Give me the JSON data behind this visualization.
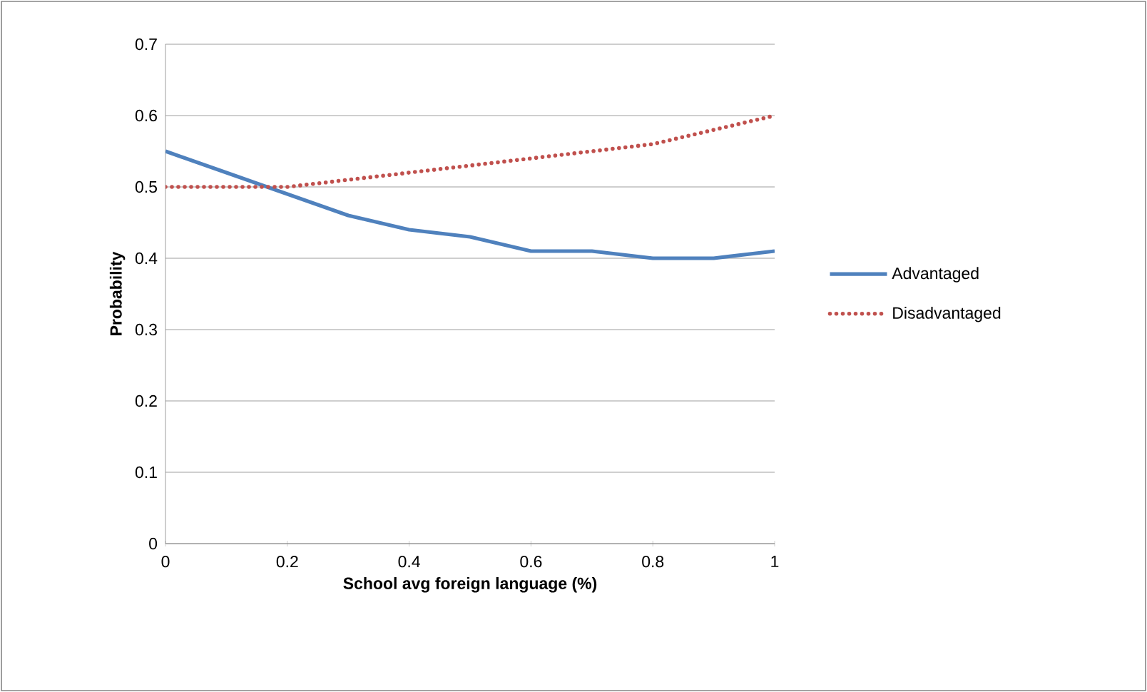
{
  "chart_data": {
    "type": "line",
    "xlabel": "School avg foreign language  (%)",
    "ylabel": "Probability",
    "x": [
      0,
      0.1,
      0.2,
      0.3,
      0.4,
      0.5,
      0.6,
      0.7,
      0.8,
      0.9,
      1
    ],
    "series": [
      {
        "name": "Advantaged",
        "color": "#4f81bd",
        "line_style": "solid",
        "values": [
          0.55,
          0.52,
          0.49,
          0.46,
          0.44,
          0.43,
          0.41,
          0.41,
          0.4,
          0.4,
          0.41
        ]
      },
      {
        "name": "Disadvantaged",
        "color": "#c0504d",
        "line_style": "dotted",
        "values": [
          0.5,
          0.5,
          0.5,
          0.51,
          0.52,
          0.53,
          0.54,
          0.55,
          0.56,
          0.58,
          0.6
        ]
      }
    ],
    "xlim": [
      0,
      1
    ],
    "ylim": [
      0,
      0.7
    ],
    "xticks": [
      0,
      0.2,
      0.4,
      0.6,
      0.8,
      1
    ],
    "yticks": [
      0,
      0.1,
      0.2,
      0.3,
      0.4,
      0.5,
      0.6,
      0.7
    ],
    "grid": "y",
    "legend": "right"
  }
}
